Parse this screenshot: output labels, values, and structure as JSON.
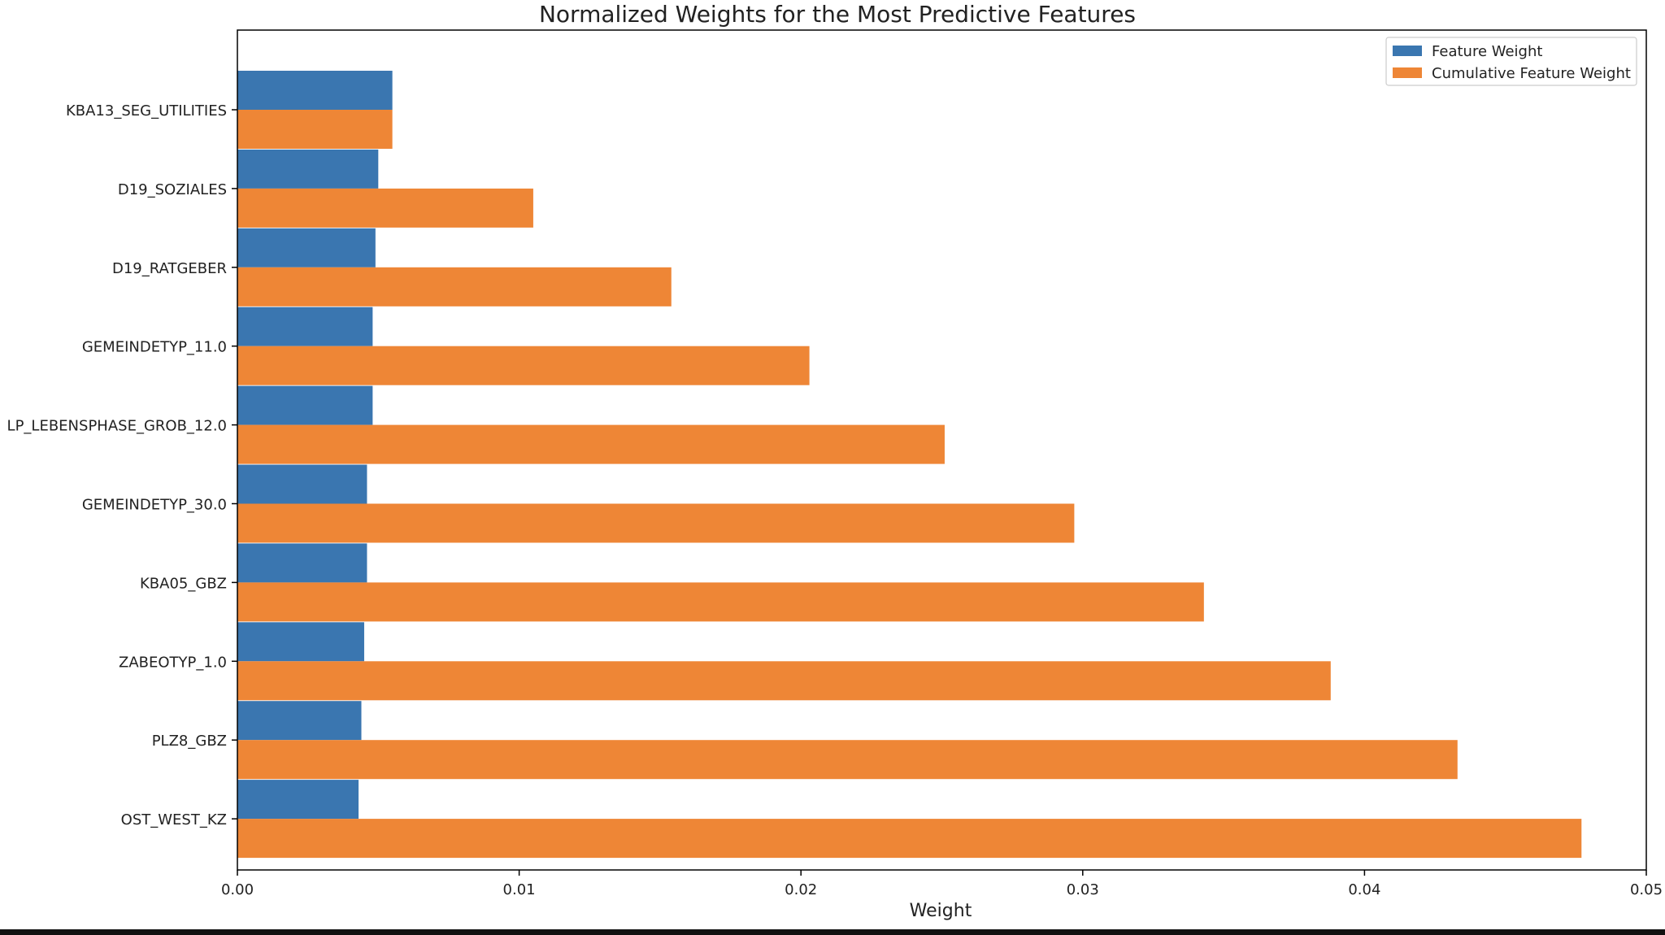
{
  "chart_data": {
    "type": "bar",
    "orientation": "horizontal",
    "title": "Normalized Weights for the Most Predictive Features",
    "xlabel": "Weight",
    "ylabel": "",
    "xlim": [
      0,
      0.05
    ],
    "xticks": [
      "0.00",
      "0.01",
      "0.02",
      "0.03",
      "0.04",
      "0.05"
    ],
    "xtick_values": [
      0,
      0.01,
      0.02,
      0.03,
      0.04,
      0.05
    ],
    "grid": false,
    "legend_position": "top-right",
    "categories": [
      "KBA13_SEG_UTILITIES",
      "D19_SOZIALES",
      "D19_RATGEBER",
      "GEMEINDETYP_11.0",
      "LP_LEBENSPHASE_GROB_12.0",
      "GEMEINDETYP_30.0",
      "KBA05_GBZ",
      "ZABEOTYP_1.0",
      "PLZ8_GBZ",
      "OST_WEST_KZ"
    ],
    "series": [
      {
        "name": "Feature Weight",
        "color": "#3a76b0",
        "values": [
          0.0055,
          0.005,
          0.0049,
          0.0048,
          0.0048,
          0.0046,
          0.0046,
          0.0045,
          0.0044,
          0.0043
        ]
      },
      {
        "name": "Cumulative Feature Weight",
        "color": "#ee8636",
        "values": [
          0.0055,
          0.0105,
          0.0154,
          0.0203,
          0.0251,
          0.0297,
          0.0343,
          0.0388,
          0.0433,
          0.0477
        ]
      }
    ]
  }
}
